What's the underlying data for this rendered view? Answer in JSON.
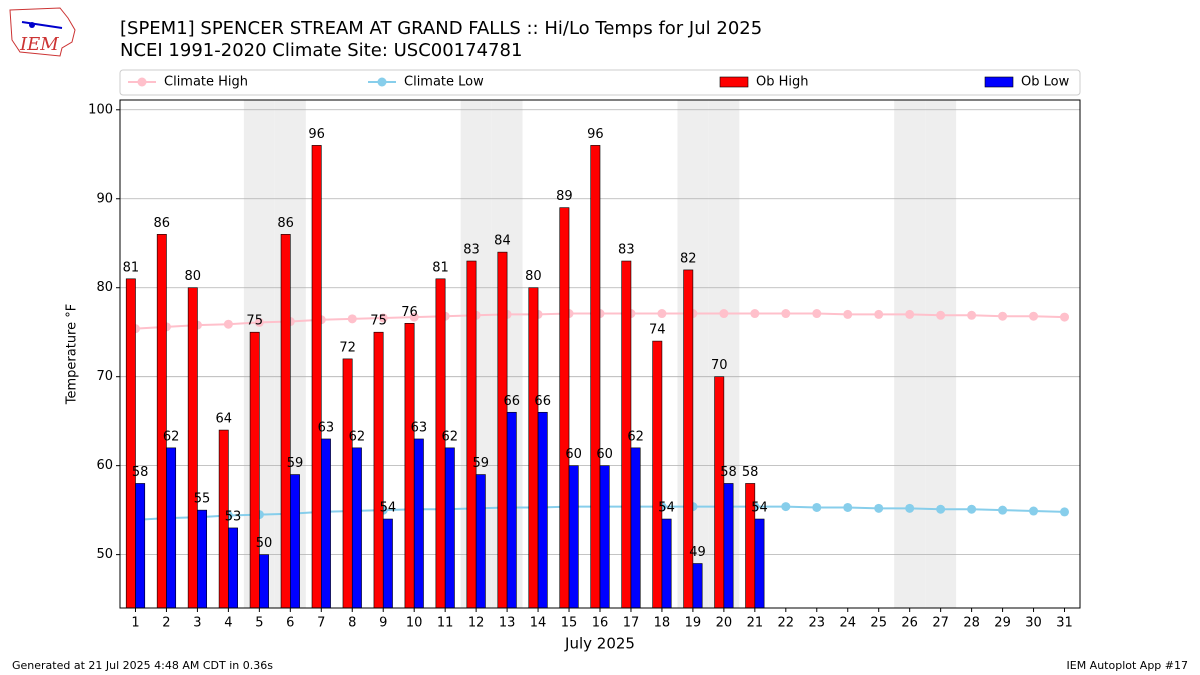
{
  "chart_data": {
    "type": "bar",
    "title": "[SPEM1] SPENCER STREAM  AT GRAND FALLS :: Hi/Lo Temps for Jul 2025",
    "subtitle": "NCEI 1991-2020 Climate Site: USC00174781",
    "xlabel": "July 2025",
    "ylabel": "Temperature °F",
    "footer_left": "Generated at 21 Jul 2025 4:48 AM CDT in 0.36s",
    "footer_right": "IEM Autoplot App #17",
    "logo_text": "IEM",
    "x": [
      1,
      2,
      3,
      4,
      5,
      6,
      7,
      8,
      9,
      10,
      11,
      12,
      13,
      14,
      15,
      16,
      17,
      18,
      19,
      20,
      21,
      22,
      23,
      24,
      25,
      26,
      27,
      28,
      29,
      30,
      31
    ],
    "xlim": [
      0.5,
      31.5
    ],
    "ylim": [
      44,
      101.1
    ],
    "yticks": [
      50,
      60,
      70,
      80,
      90,
      100
    ],
    "grid": true,
    "legend": "top",
    "shaded_days": [
      5,
      6,
      12,
      13,
      19,
      20,
      26,
      27
    ],
    "series": [
      {
        "name": "Climate High",
        "kind": "line",
        "color": "#ffc0cb",
        "values": [
          75.4,
          75.6,
          75.8,
          75.9,
          76.1,
          76.2,
          76.4,
          76.5,
          76.6,
          76.7,
          76.8,
          76.9,
          77.0,
          77.0,
          77.1,
          77.1,
          77.1,
          77.1,
          77.1,
          77.1,
          77.1,
          77.1,
          77.1,
          77.0,
          77.0,
          77.0,
          76.9,
          76.9,
          76.8,
          76.8,
          76.7
        ]
      },
      {
        "name": "Climate Low",
        "kind": "line",
        "color": "#87ceeb",
        "values": [
          53.9,
          54.1,
          54.2,
          54.4,
          54.5,
          54.6,
          54.8,
          54.9,
          55.0,
          55.1,
          55.1,
          55.2,
          55.3,
          55.3,
          55.4,
          55.4,
          55.4,
          55.4,
          55.4,
          55.4,
          55.4,
          55.4,
          55.3,
          55.3,
          55.2,
          55.2,
          55.1,
          55.1,
          55.0,
          54.9,
          54.8
        ]
      },
      {
        "name": "Ob High",
        "kind": "bar",
        "color": "#ff0000",
        "values": [
          81,
          86,
          80,
          64,
          75,
          86,
          96,
          72,
          75,
          76,
          81,
          83,
          84,
          80,
          89,
          96,
          83,
          74,
          82,
          70,
          58,
          null,
          null,
          null,
          null,
          null,
          null,
          null,
          null,
          null,
          null
        ]
      },
      {
        "name": "Ob Low",
        "kind": "bar",
        "color": "#0000ff",
        "values": [
          58,
          62,
          55,
          53,
          50,
          59,
          63,
          62,
          54,
          63,
          62,
          59,
          66,
          66,
          60,
          60,
          62,
          54,
          49,
          58,
          54,
          null,
          null,
          null,
          null,
          null,
          null,
          null,
          null,
          null,
          null
        ]
      }
    ]
  }
}
